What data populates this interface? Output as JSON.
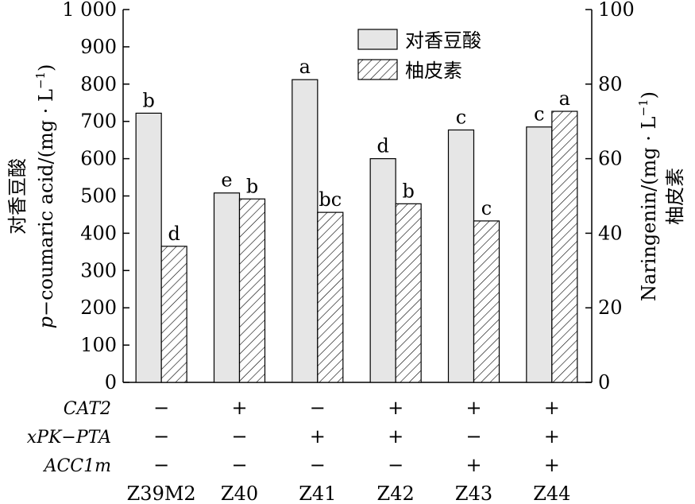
{
  "chart_data": {
    "type": "bar",
    "categories": [
      "Z39M2",
      "Z40",
      "Z41",
      "Z42",
      "Z43",
      "Z44"
    ],
    "series": [
      {
        "name": "对香豆酸",
        "axis": "left",
        "fill": "#e6e6e6",
        "values": [
          722,
          508,
          812,
          600,
          677,
          685
        ],
        "labels": [
          "b",
          "e",
          "a",
          "d",
          "c",
          "c"
        ]
      },
      {
        "name": "柚皮素",
        "axis": "right",
        "fill": "hatched",
        "values": [
          36.5,
          49.2,
          45.6,
          47.9,
          43.3,
          72.7
        ],
        "labels": [
          "d",
          "b",
          "bc",
          "b",
          "c",
          "a"
        ]
      }
    ],
    "y_left": {
      "label_cn": "对香豆酸",
      "label_en_prefix": "p",
      "label_en_rest": "−coumaric acid/(mg · L",
      "label_sup": "−1",
      "label_close": ")",
      "ylim": [
        0,
        1000
      ],
      "ticks": [
        "0",
        "100",
        "200",
        "300",
        "400",
        "500",
        "600",
        "700",
        "800",
        "900",
        "1 000"
      ]
    },
    "y_right": {
      "label_en": "Naringenin/(mg · L",
      "label_sup": "−1",
      "label_close": ")",
      "label_cn": "柚皮素",
      "ylim": [
        0,
        100
      ],
      "ticks": [
        "0",
        "20",
        "40",
        "60",
        "80",
        "100"
      ]
    },
    "factors": [
      {
        "name": "CAT2",
        "signs": [
          "−",
          "+",
          "−",
          "+",
          "+",
          "+"
        ]
      },
      {
        "name": "xPK−PTA",
        "signs": [
          "−",
          "−",
          "+",
          "+",
          "−",
          "+"
        ]
      },
      {
        "name": "ACC1m",
        "signs": [
          "−",
          "−",
          "−",
          "−",
          "+",
          "+"
        ]
      }
    ],
    "legend_position": "top-center",
    "grid": false
  }
}
